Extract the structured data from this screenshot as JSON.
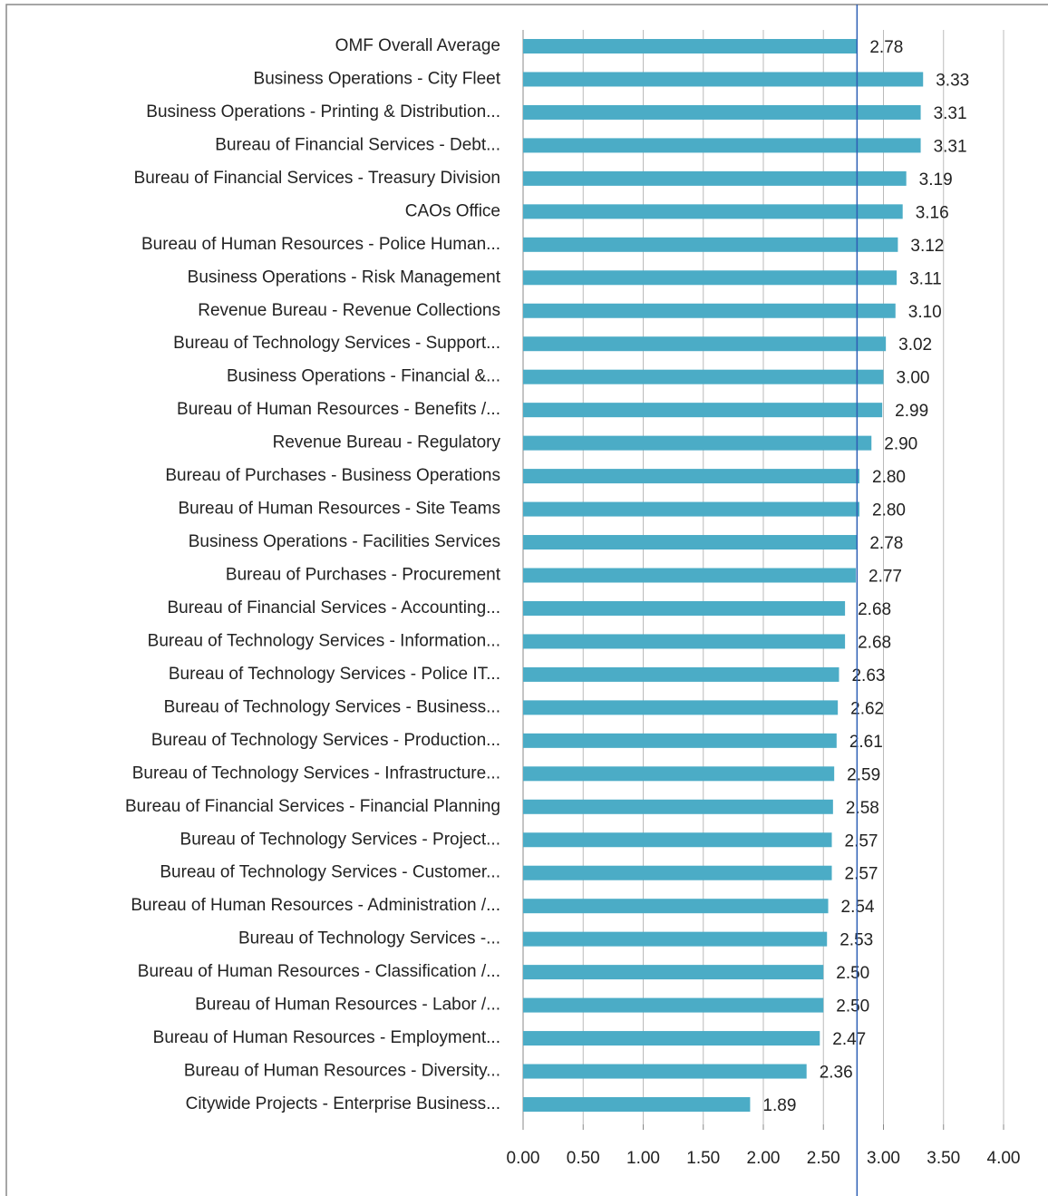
{
  "chart_data": {
    "type": "bar",
    "orientation": "horizontal",
    "categories": [
      "OMF Overall Average",
      "Business Operations - City Fleet",
      "Business Operations - Printing & Distribution...",
      "Bureau of Financial Services - Debt...",
      "Bureau of Financial Services - Treasury Division",
      "CAOs Office",
      "Bureau of Human Resources - Police Human...",
      "Business Operations - Risk Management",
      "Revenue Bureau - Revenue Collections",
      "Bureau of Technology Services - Support...",
      "Business Operations - Financial &...",
      "Bureau of Human Resources - Benefits /...",
      "Revenue Bureau - Regulatory",
      "Bureau of Purchases - Business Operations",
      "Bureau of Human Resources - Site Teams",
      "Business Operations - Facilities Services",
      "Bureau of Purchases - Procurement",
      "Bureau of Financial Services - Accounting...",
      "Bureau of Technology Services - Information...",
      "Bureau of Technology Services - Police IT...",
      "Bureau of Technology Services - Business...",
      "Bureau of Technology Services - Production...",
      "Bureau of Technology Services - Infrastructure...",
      "Bureau of Financial Services - Financial Planning",
      "Bureau of Technology Services - Project...",
      "Bureau of Technology Services - Customer...",
      "Bureau of Human Resources - Administration /...",
      "Bureau of Technology Services -...",
      "Bureau of Human Resources - Classification /...",
      "Bureau of Human Resources - Labor /...",
      "Bureau of Human Resources - Employment...",
      "Bureau of Human Resources - Diversity...",
      "Citywide Projects - Enterprise Business..."
    ],
    "values": [
      2.78,
      3.33,
      3.31,
      3.31,
      3.19,
      3.16,
      3.12,
      3.11,
      3.1,
      3.02,
      3.0,
      2.99,
      2.9,
      2.8,
      2.8,
      2.78,
      2.77,
      2.68,
      2.68,
      2.63,
      2.62,
      2.61,
      2.59,
      2.58,
      2.57,
      2.57,
      2.54,
      2.53,
      2.5,
      2.5,
      2.47,
      2.36,
      1.89
    ],
    "value_labels": [
      "2.78",
      "3.33",
      "3.31",
      "3.31",
      "3.19",
      "3.16",
      "3.12",
      "3.11",
      "3.10",
      "3.02",
      "3.00",
      "2.99",
      "2.90",
      "2.80",
      "2.80",
      "2.78",
      "2.77",
      "2.68",
      "2.68",
      "2.63",
      "2.62",
      "2.61",
      "2.59",
      "2.58",
      "2.57",
      "2.57",
      "2.54",
      "2.53",
      "2.50",
      "2.50",
      "2.47",
      "2.36",
      "1.89"
    ],
    "color": "#4bacc6",
    "xlim": [
      0,
      4
    ],
    "xticks": [
      {
        "value": 0,
        "label": "0.00"
      },
      {
        "value": 0.5,
        "label": "0.50"
      },
      {
        "value": 1,
        "label": "1.00"
      },
      {
        "value": 1.5,
        "label": "1.50"
      },
      {
        "value": 2,
        "label": "2.00"
      },
      {
        "value": 2.5,
        "label": "2.50"
      },
      {
        "value": 3,
        "label": "3.00"
      },
      {
        "value": 3.5,
        "label": "3.50"
      },
      {
        "value": 4,
        "label": "4.00"
      }
    ],
    "grid": true,
    "reference_line": {
      "value": 2.78,
      "color": "#2e5fb5"
    }
  }
}
